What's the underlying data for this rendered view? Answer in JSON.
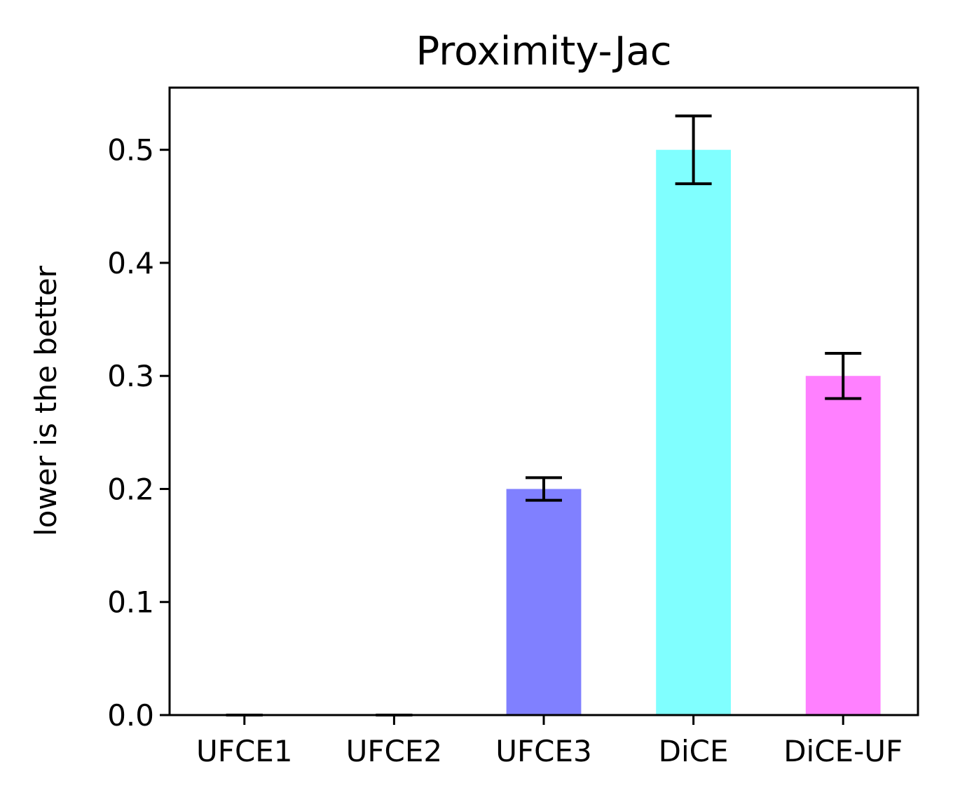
{
  "chart_data": {
    "type": "bar",
    "title": "Proximity-Jac",
    "xlabel": "",
    "ylabel": "lower is the better",
    "categories": [
      "UFCE1",
      "UFCE2",
      "UFCE3",
      "DiCE",
      "DiCE-UF"
    ],
    "values": [
      0.0,
      0.0,
      0.2,
      0.5,
      0.3
    ],
    "errors": [
      0.0,
      0.0,
      0.01,
      0.03,
      0.02
    ],
    "colors": [
      "#8080ff",
      "#8080ff",
      "#8080ff",
      "#80ffff",
      "#ff80ff"
    ],
    "ylim": [
      0,
      0.555
    ],
    "yticks": [
      0.0,
      0.1,
      0.2,
      0.3,
      0.4,
      0.5
    ],
    "ytick_labels": [
      "0.0",
      "0.1",
      "0.2",
      "0.3",
      "0.4",
      "0.5"
    ],
    "grid": false
  }
}
